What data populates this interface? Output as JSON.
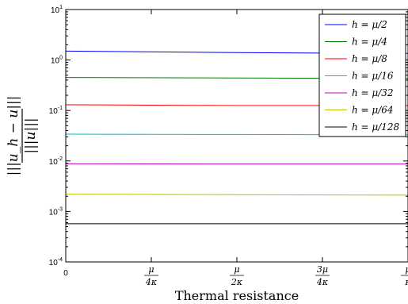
{
  "chart_data": {
    "type": "line",
    "xlabel": "Thermal  resistance",
    "ylabel": {
      "numerator": "|||u_h − u|||",
      "denominator": "|||u|||"
    },
    "y_scale": "log",
    "ylim": [
      0.0001,
      10
    ],
    "y_ticks": [
      {
        "value": 10,
        "base": "10",
        "exp": "1"
      },
      {
        "value": 1,
        "base": "10",
        "exp": "0"
      },
      {
        "value": 0.1,
        "base": "10",
        "exp": "-1"
      },
      {
        "value": 0.01,
        "base": "10",
        "exp": "-2"
      },
      {
        "value": 0.001,
        "base": "10",
        "exp": "-3"
      },
      {
        "value": 0.0001,
        "base": "10",
        "exp": "-4"
      }
    ],
    "x_ticks": [
      {
        "value": 0,
        "num": "",
        "den": "",
        "plain": "0"
      },
      {
        "value": 0.25,
        "num": "μ",
        "den": "4κ",
        "plain": ""
      },
      {
        "value": 0.5,
        "num": "μ",
        "den": "2κ",
        "plain": ""
      },
      {
        "value": 0.75,
        "num": "3μ",
        "den": "4κ",
        "plain": ""
      },
      {
        "value": 1,
        "num": "μ",
        "den": "κ",
        "plain": ""
      }
    ],
    "xlim": [
      0,
      1
    ],
    "grid": false,
    "legend_position": "top-right",
    "series": [
      {
        "name": "h = μ/2",
        "color": "#0000ff",
        "x": [
          0,
          0.5,
          1
        ],
        "y": [
          1.5,
          1.4,
          1.35
        ]
      },
      {
        "name": "h = μ/4",
        "color": "#008000",
        "x": [
          0,
          0.5,
          1
        ],
        "y": [
          0.45,
          0.44,
          0.43
        ]
      },
      {
        "name": "h = μ/8",
        "color": "#ff0000",
        "x": [
          0,
          0.5,
          1
        ],
        "y": [
          0.13,
          0.125,
          0.125
        ]
      },
      {
        "name": "h = μ/16",
        "color": "#00bfbf",
        "x": [
          0,
          0.5,
          1
        ],
        "y": [
          0.034,
          0.0335,
          0.033
        ]
      },
      {
        "name": "h = μ/32",
        "color": "#bf00bf",
        "x": [
          0,
          0.5,
          1
        ],
        "y": [
          0.0088,
          0.0087,
          0.0087
        ]
      },
      {
        "name": "h = μ/64",
        "color": "#bfbf00",
        "x": [
          0,
          0.5,
          1
        ],
        "y": [
          0.0022,
          0.00215,
          0.0021
        ]
      },
      {
        "name": "h = μ/128",
        "color": "#000000",
        "x": [
          0,
          0.5,
          1
        ],
        "y": [
          0.00057,
          0.00057,
          0.00057
        ]
      }
    ]
  }
}
